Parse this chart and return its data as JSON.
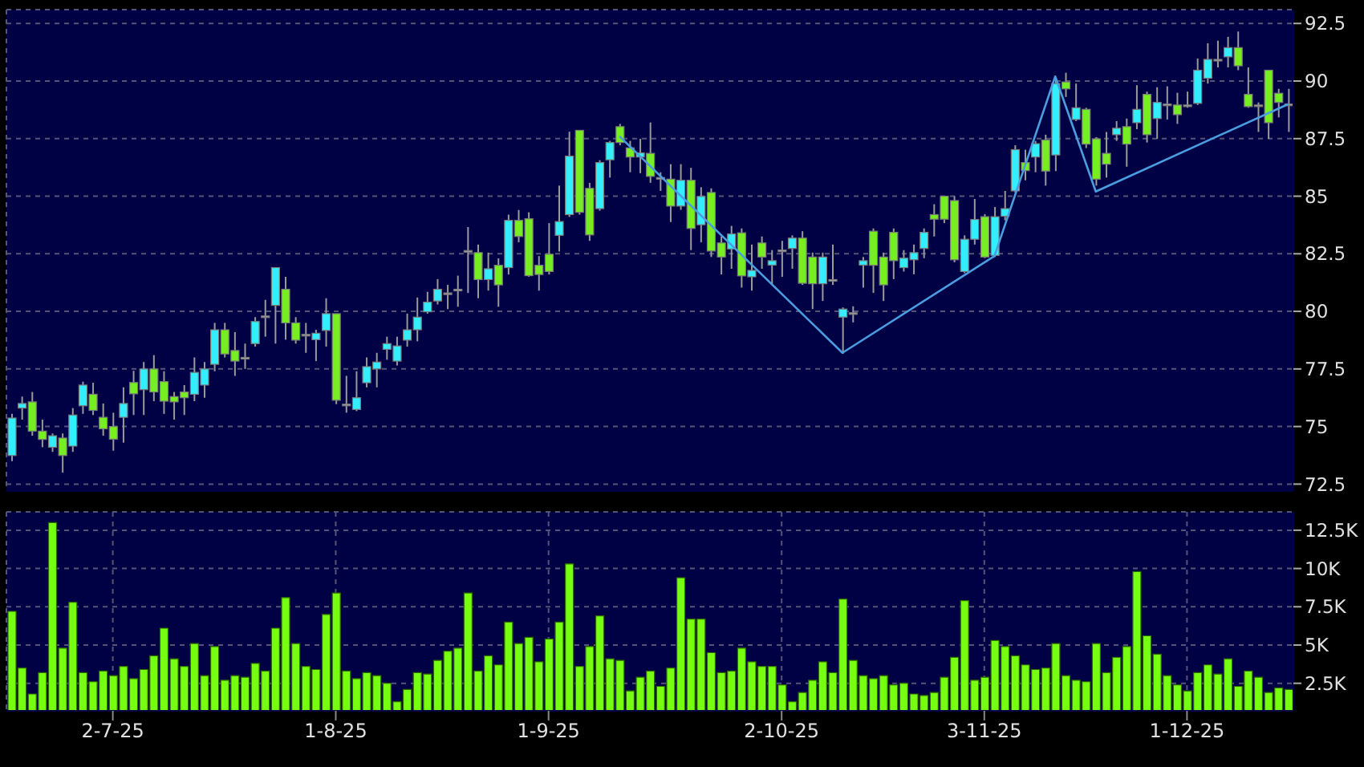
{
  "chart_data": [
    {
      "type": "candlestick",
      "tick_labels": "y",
      "grid": true,
      "categories": [
        null,
        null,
        null,
        null,
        null,
        null,
        null,
        null,
        null,
        null,
        null,
        null,
        null,
        null,
        null,
        null,
        null,
        null,
        null,
        null,
        null,
        null,
        null,
        null,
        null,
        null,
        null,
        null,
        null,
        null,
        null,
        null,
        null,
        null,
        null,
        null,
        null,
        null,
        null,
        null,
        null,
        null,
        null,
        null,
        null,
        null,
        null,
        null,
        null,
        null,
        null,
        null,
        null,
        null,
        null,
        null,
        null,
        null,
        null,
        null,
        null,
        null,
        null,
        null,
        null,
        null,
        null,
        null,
        null,
        null,
        null,
        null,
        null,
        null,
        null,
        null,
        null,
        null,
        null,
        null,
        null,
        null,
        null,
        null,
        null,
        null,
        null,
        null,
        null,
        null,
        null,
        null,
        null,
        null,
        null,
        null,
        null,
        null,
        null,
        null,
        null,
        null,
        null,
        null,
        null,
        null,
        null,
        null,
        null,
        null,
        null,
        null,
        null,
        null,
        null,
        null,
        null,
        null,
        null,
        null,
        null,
        null,
        null,
        null,
        null,
        null,
        null
      ],
      "ohlc": [
        [
          73.74,
          75.55,
          73.5,
          75.37
        ],
        [
          75.8,
          76.3,
          75.3,
          76.0
        ],
        [
          76.07,
          76.5,
          74.6,
          74.8
        ],
        [
          74.8,
          75.3,
          74.1,
          74.44
        ],
        [
          74.1,
          74.7,
          73.9,
          74.6
        ],
        [
          74.5,
          74.7,
          73.0,
          73.74
        ],
        [
          74.15,
          75.8,
          73.9,
          75.5
        ],
        [
          75.9,
          76.95,
          75.55,
          76.8
        ],
        [
          76.4,
          76.9,
          75.5,
          75.7
        ],
        [
          75.4,
          76.0,
          74.6,
          74.9
        ],
        [
          75.0,
          75.6,
          73.95,
          74.45
        ],
        [
          75.4,
          76.7,
          74.3,
          76.0
        ],
        [
          76.91,
          77.42,
          75.5,
          76.42
        ],
        [
          76.6,
          77.8,
          75.5,
          77.5
        ],
        [
          77.5,
          78.1,
          76.1,
          76.5
        ],
        [
          76.95,
          77.4,
          75.55,
          76.1
        ],
        [
          76.3,
          76.5,
          75.3,
          76.07
        ],
        [
          76.5,
          76.8,
          75.5,
          76.25
        ],
        [
          76.4,
          78.0,
          76.1,
          77.35
        ],
        [
          76.8,
          77.8,
          76.25,
          77.5
        ],
        [
          77.7,
          79.5,
          77.4,
          79.2
        ],
        [
          79.2,
          79.5,
          78.0,
          78.15
        ],
        [
          78.3,
          79.1,
          77.2,
          77.84
        ],
        [
          78.0,
          78.6,
          77.5,
          78.0
        ],
        [
          78.6,
          79.75,
          78.47,
          79.56
        ],
        [
          79.8,
          80.5,
          78.9,
          79.8
        ],
        [
          80.26,
          81.9,
          78.6,
          81.9
        ],
        [
          80.96,
          81.5,
          78.77,
          79.5
        ],
        [
          79.5,
          79.75,
          78.6,
          78.75
        ],
        [
          79.0,
          79.5,
          78.2,
          79.0
        ],
        [
          78.77,
          79.2,
          77.84,
          79.05
        ],
        [
          79.17,
          80.57,
          78.47,
          79.9
        ],
        [
          79.9,
          79.9,
          75.97,
          76.14
        ],
        [
          75.97,
          77.2,
          75.6,
          75.97
        ],
        [
          75.74,
          77.4,
          75.67,
          76.25
        ],
        [
          76.9,
          78.0,
          76.7,
          77.6
        ],
        [
          77.5,
          78.2,
          76.7,
          77.8
        ],
        [
          78.35,
          78.9,
          77.9,
          78.6
        ],
        [
          77.84,
          78.9,
          77.65,
          78.5
        ],
        [
          78.75,
          79.9,
          78.47,
          79.2
        ],
        [
          79.2,
          80.6,
          78.7,
          79.75
        ],
        [
          79.98,
          80.85,
          79.9,
          80.4
        ],
        [
          80.45,
          81.4,
          80.3,
          80.96
        ],
        [
          80.8,
          81.15,
          80.1,
          80.8
        ],
        [
          80.96,
          81.55,
          80.2,
          80.96
        ],
        [
          82.64,
          83.66,
          80.8,
          82.64
        ],
        [
          82.55,
          82.9,
          80.57,
          81.38
        ],
        [
          81.38,
          82.55,
          80.9,
          81.85
        ],
        [
          82.0,
          82.3,
          80.2,
          81.15
        ],
        [
          81.9,
          84.2,
          81.6,
          83.95
        ],
        [
          83.95,
          84.4,
          83.0,
          83.25
        ],
        [
          84.02,
          84.3,
          81.5,
          81.55
        ],
        [
          82.0,
          82.4,
          80.9,
          81.6
        ],
        [
          82.48,
          83.83,
          81.6,
          81.73
        ],
        [
          83.3,
          85.46,
          82.6,
          83.9
        ],
        [
          84.2,
          87.8,
          84.1,
          86.74
        ],
        [
          87.86,
          87.86,
          84.2,
          84.3
        ],
        [
          85.34,
          85.58,
          83.06,
          83.32
        ],
        [
          84.46,
          86.56,
          84.37,
          86.46
        ],
        [
          86.58,
          87.4,
          85.81,
          87.33
        ],
        [
          88.02,
          88.14,
          87.21,
          87.33
        ],
        [
          87.1,
          87.4,
          86.04,
          86.7
        ],
        [
          86.7,
          87.49,
          86.0,
          86.88
        ],
        [
          86.86,
          88.2,
          85.58,
          85.86
        ],
        [
          85.81,
          86.04,
          85.23,
          85.81
        ],
        [
          85.74,
          86.39,
          83.88,
          84.57
        ],
        [
          84.57,
          86.39,
          84.41,
          85.69
        ],
        [
          85.69,
          86.23,
          82.66,
          83.6
        ],
        [
          83.76,
          85.39,
          83.0,
          84.99
        ],
        [
          85.16,
          85.34,
          82.36,
          82.62
        ],
        [
          82.97,
          83.25,
          81.6,
          82.36
        ],
        [
          82.71,
          83.71,
          81.85,
          83.36
        ],
        [
          83.41,
          83.6,
          81.03,
          81.54
        ],
        [
          81.5,
          82.9,
          80.9,
          81.78
        ],
        [
          82.97,
          83.25,
          81.85,
          82.36
        ],
        [
          82.01,
          82.66,
          81.15,
          82.2
        ],
        [
          82.66,
          83.06,
          81.5,
          82.66
        ],
        [
          82.73,
          83.3,
          81.85,
          83.18
        ],
        [
          83.18,
          83.48,
          81.15,
          81.22
        ],
        [
          82.36,
          82.55,
          80.1,
          81.2
        ],
        [
          81.2,
          82.55,
          80.45,
          82.36
        ],
        [
          81.38,
          82.9,
          81.15,
          81.38
        ],
        [
          79.75,
          80.17,
          78.16,
          80.1
        ],
        [
          79.94,
          80.22,
          79.52,
          79.94
        ],
        [
          82.01,
          82.36,
          81.03,
          82.2
        ],
        [
          83.48,
          83.6,
          80.8,
          82.0
        ],
        [
          82.36,
          82.55,
          80.45,
          81.15
        ],
        [
          83.43,
          83.6,
          81.4,
          82.2
        ],
        [
          81.9,
          82.66,
          81.73,
          82.31
        ],
        [
          82.24,
          82.9,
          81.61,
          82.55
        ],
        [
          82.73,
          83.6,
          82.31,
          83.43
        ],
        [
          84.2,
          84.65,
          83.25,
          84.0
        ],
        [
          85.0,
          85.0,
          83.83,
          84.0
        ],
        [
          84.81,
          85.0,
          82.13,
          82.24
        ],
        [
          81.73,
          83.3,
          81.66,
          83.13
        ],
        [
          83.13,
          84.88,
          82.9,
          83.99
        ],
        [
          84.11,
          84.22,
          82.31,
          82.36
        ],
        [
          82.43,
          84.53,
          82.36,
          84.11
        ],
        [
          84.13,
          85.23,
          83.95,
          84.46
        ],
        [
          85.23,
          87.21,
          85.16,
          87.02
        ],
        [
          86.46,
          87.02,
          85.69,
          86.11
        ],
        [
          86.7,
          87.4,
          86.04,
          87.28
        ],
        [
          87.44,
          87.67,
          85.46,
          86.09
        ],
        [
          86.79,
          90.17,
          86.09,
          89.89
        ],
        [
          89.96,
          90.36,
          89.31,
          89.66
        ],
        [
          88.33,
          89.89,
          88.26,
          88.84
        ],
        [
          88.77,
          88.84,
          87.09,
          87.26
        ],
        [
          87.49,
          87.56,
          85.46,
          85.74
        ],
        [
          86.86,
          87.79,
          85.81,
          86.39
        ],
        [
          87.67,
          88.26,
          87.4,
          87.95
        ],
        [
          88.02,
          88.37,
          86.28,
          87.26
        ],
        [
          88.19,
          89.82,
          87.91,
          88.77
        ],
        [
          89.42,
          89.54,
          87.33,
          87.67
        ],
        [
          88.37,
          89.73,
          87.49,
          89.07
        ],
        [
          89.0,
          89.77,
          88.33,
          89.0
        ],
        [
          88.96,
          89.49,
          88.14,
          88.54
        ],
        [
          88.96,
          89.54,
          88.84,
          88.96
        ],
        [
          89.03,
          90.98,
          88.96,
          90.47
        ],
        [
          90.12,
          91.64,
          89.89,
          90.94
        ],
        [
          90.94,
          91.75,
          90.59,
          90.94
        ],
        [
          91.05,
          91.92,
          90.59,
          91.45
        ],
        [
          91.45,
          92.15,
          90.47,
          90.66
        ],
        [
          89.42,
          90.59,
          88.84,
          88.89
        ],
        [
          88.96,
          89.07,
          87.79,
          88.96
        ],
        [
          90.47,
          90.47,
          87.49,
          88.19
        ],
        [
          89.47,
          89.66,
          88.42,
          89.07
        ],
        [
          89.0,
          89.66,
          87.79,
          89.0
        ]
      ],
      "colors": [
        "#33eeff",
        "#33eeff",
        "#77ee22",
        "#77ee22",
        "#33eeff",
        "#77ee22",
        "#33eeff",
        "#33eeff",
        "#77ee22",
        "#77ee22",
        "#77ee22",
        "#33eeff",
        "#77ee22",
        "#33eeff",
        "#77ee22",
        "#77ee22",
        "#77ee22",
        "#77ee22",
        "#33eeff",
        "#33eeff",
        "#33eeff",
        "#77ee22",
        "#77ee22",
        "#aaaaaa",
        "#33eeff",
        "#aaaaaa",
        "#33eeff",
        "#77ee22",
        "#77ee22",
        "#aaaaaa",
        "#33eeff",
        "#33eeff",
        "#77ee22",
        "#aaaaaa",
        "#33eeff",
        "#33eeff",
        "#33eeff",
        "#33eeff",
        "#33eeff",
        "#33eeff",
        "#33eeff",
        "#33eeff",
        "#33eeff",
        "#aaaaaa",
        "#aaaaaa",
        "#aaaaaa",
        "#77ee22",
        "#33eeff",
        "#77ee22",
        "#33eeff",
        "#77ee22",
        "#77ee22",
        "#77ee22",
        "#77ee22",
        "#33eeff",
        "#33eeff",
        "#77ee22",
        "#77ee22",
        "#33eeff",
        "#33eeff",
        "#77ee22",
        "#77ee22",
        "#33eeff",
        "#77ee22",
        "#aaaaaa",
        "#77ee22",
        "#33eeff",
        "#77ee22",
        "#33eeff",
        "#77ee22",
        "#77ee22",
        "#33eeff",
        "#77ee22",
        "#33eeff",
        "#77ee22",
        "#33eeff",
        "#aaaaaa",
        "#33eeff",
        "#77ee22",
        "#77ee22",
        "#33eeff",
        "#aaaaaa",
        "#33eeff",
        "#aaaaaa",
        "#33eeff",
        "#77ee22",
        "#77ee22",
        "#77ee22",
        "#33eeff",
        "#33eeff",
        "#33eeff",
        "#77ee22",
        "#77ee22",
        "#77ee22",
        "#33eeff",
        "#33eeff",
        "#77ee22",
        "#33eeff",
        "#33eeff",
        "#33eeff",
        "#77ee22",
        "#33eeff",
        "#77ee22",
        "#33eeff",
        "#77ee22",
        "#33eeff",
        "#77ee22",
        "#77ee22",
        "#77ee22",
        "#33eeff",
        "#77ee22",
        "#33eeff",
        "#77ee22",
        "#33eeff",
        "#aaaaaa",
        "#77ee22",
        "#aaaaaa",
        "#33eeff",
        "#33eeff",
        "#aaaaaa",
        "#33eeff",
        "#77ee22",
        "#77ee22",
        "#aaaaaa",
        "#77ee22",
        "#77ee22",
        "#aaaaaa"
      ],
      "series": [
        {
          "type": "line",
          "color": "#4a9ee0",
          "values": [
            null,
            null,
            null,
            null,
            null,
            null,
            null,
            null,
            null,
            null,
            null,
            null,
            null,
            null,
            null,
            null,
            null,
            null,
            null,
            null,
            null,
            null,
            null,
            null,
            null,
            null,
            null,
            null,
            null,
            null,
            null,
            null,
            null,
            null,
            null,
            null,
            null,
            null,
            null,
            null,
            null,
            null,
            null,
            null,
            null,
            null,
            null,
            null,
            null,
            null,
            null,
            null,
            null,
            null,
            null,
            null,
            null,
            null,
            null,
            null,
            87.6,
            null,
            null,
            null,
            null,
            null,
            null,
            null,
            null,
            null,
            null,
            null,
            null,
            null,
            null,
            null,
            null,
            null,
            null,
            null,
            null,
            null,
            78.2,
            null,
            null,
            null,
            null,
            null,
            null,
            null,
            null,
            null,
            null,
            null,
            null,
            null,
            null,
            82.4,
            null,
            null,
            null,
            null,
            null,
            90.2,
            null,
            null,
            null,
            85.2,
            null,
            null,
            null,
            null,
            null,
            null,
            null,
            null,
            null,
            null,
            null,
            null,
            null,
            null,
            null,
            null,
            null,
            null,
            89.0
          ]
        }
      ],
      "ylim": [
        72.2,
        93.1
      ],
      "yticks": [
        72.5,
        75,
        77.5,
        80,
        82.5,
        85,
        87.5,
        90,
        92.5
      ]
    },
    {
      "type": "bar",
      "grid": true,
      "color": "#77ff11",
      "categories": [
        null,
        null,
        null,
        null,
        null,
        null,
        null,
        null,
        null,
        null,
        "2-7-25",
        null,
        null,
        null,
        null,
        null,
        null,
        null,
        null,
        null,
        null,
        null,
        null,
        null,
        null,
        null,
        null,
        null,
        null,
        null,
        null,
        null,
        "1-8-25",
        null,
        null,
        null,
        null,
        null,
        null,
        null,
        null,
        null,
        null,
        null,
        null,
        null,
        null,
        null,
        null,
        null,
        null,
        null,
        null,
        "1-9-25",
        null,
        null,
        null,
        null,
        null,
        null,
        null,
        null,
        null,
        null,
        null,
        null,
        null,
        null,
        null,
        null,
        null,
        null,
        null,
        null,
        null,
        null,
        "2-10-25",
        null,
        null,
        null,
        null,
        null,
        null,
        null,
        null,
        null,
        null,
        null,
        null,
        null,
        null,
        null,
        null,
        null,
        null,
        null,
        "3-11-25",
        null,
        null,
        null,
        null,
        null,
        null,
        null,
        null,
        null,
        null,
        null,
        null,
        null,
        null,
        null,
        null,
        null,
        null,
        null,
        "1-12-25",
        null,
        null,
        null,
        null,
        null,
        null,
        null,
        null,
        null,
        null
      ],
      "values": [
        7200,
        3500,
        1800,
        3200,
        13000,
        4800,
        7800,
        3200,
        2600,
        3300,
        3000,
        3600,
        2800,
        3400,
        4300,
        6100,
        4100,
        3600,
        5100,
        3000,
        4900,
        2700,
        3000,
        2900,
        3800,
        3300,
        6100,
        8100,
        5100,
        3600,
        3400,
        7000,
        8400,
        3300,
        2800,
        3200,
        3000,
        2500,
        1300,
        2100,
        3200,
        3100,
        4000,
        4600,
        4800,
        8400,
        3300,
        4300,
        3700,
        6500,
        5100,
        5500,
        3900,
        5400,
        6500,
        10300,
        3600,
        4900,
        6900,
        4100,
        4000,
        2000,
        2900,
        3300,
        2300,
        3500,
        9400,
        6700,
        6700,
        4500,
        3200,
        3300,
        4800,
        3900,
        3600,
        3600,
        2400,
        1300,
        1900,
        2700,
        3900,
        3200,
        8000,
        4000,
        3000,
        2800,
        3000,
        2400,
        2500,
        1800,
        1700,
        1900,
        2900,
        4200,
        7900,
        2700,
        2900,
        5300,
        4900,
        4300,
        3700,
        3400,
        3500,
        5100,
        3000,
        2700,
        2600,
        5100,
        3200,
        4200,
        4900,
        9800,
        5600,
        4400,
        3000,
        2400,
        2000,
        3200,
        3700,
        3100,
        4100,
        2300,
        3300,
        2900,
        1900,
        2200,
        2100
      ],
      "ylim": [
        700,
        13700
      ],
      "yticks": [
        {
          "value": 2500,
          "label": "2.5K"
        },
        {
          "value": 5000,
          "label": "5K"
        },
        {
          "value": 7500,
          "label": "7.5K"
        },
        {
          "value": 10000,
          "label": "10K"
        },
        {
          "value": 12500,
          "label": "12.5K"
        }
      ]
    }
  ]
}
